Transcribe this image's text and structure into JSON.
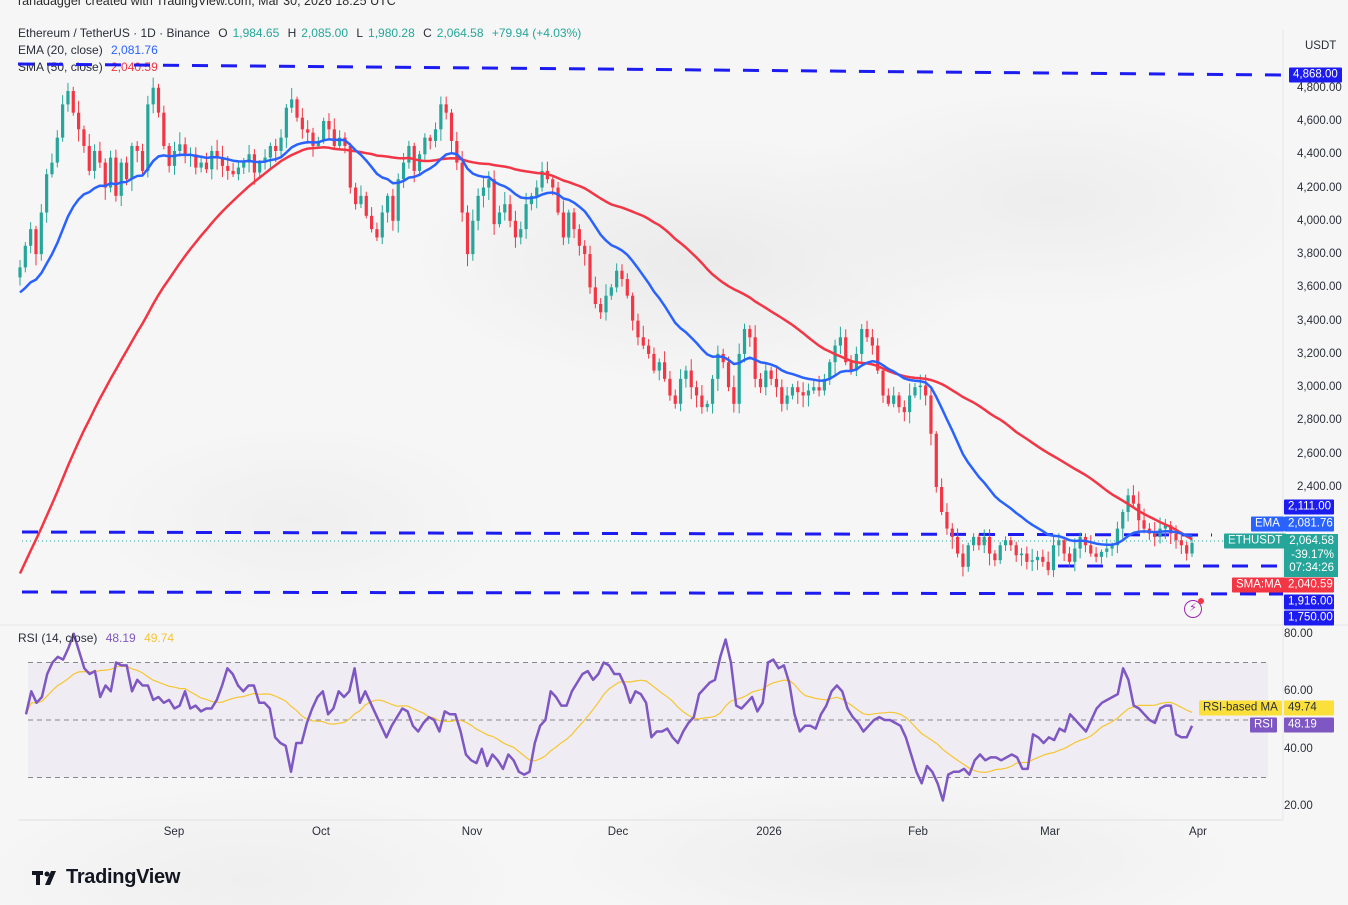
{
  "credit": "ranadagger created with TradingView.com, Mar 30, 2026 18:25 UTC",
  "symbol_legend": {
    "title": "Ethereum / TetherUS · 1D · Binance",
    "open_label": "O",
    "open": "1,984.65",
    "high_label": "H",
    "high": "2,085.00",
    "low_label": "L",
    "low": "1,980.28",
    "close_label": "C",
    "close": "2,064.58",
    "change": "+79.94 (+4.03%)"
  },
  "ema_legend": {
    "label": "EMA (20, close)",
    "value": "2,081.76"
  },
  "sma_legend": {
    "label": "SMA (50, close)",
    "value": "2,040.59"
  },
  "rsi_legend": {
    "label": "RSI (14, close)",
    "value": "48.19",
    "ma_value": "49.74"
  },
  "price_axis": {
    "unit": "USDT",
    "ticks": [
      "4,800.00",
      "4,600.00",
      "4,400.00",
      "4,200.00",
      "4,000.00",
      "3,800.00",
      "3,600.00",
      "3,400.00",
      "3,200.00",
      "3,000.00",
      "2,800.00",
      "2,600.00",
      "2,400.00"
    ]
  },
  "price_tags": {
    "resistance_top": "4,868.00",
    "resistance_mid": "2,111.00",
    "ema_label": "EMA",
    "ema_value": "2,081.76",
    "symbol_label": "ETHUSDT",
    "last_price": "2,064.58",
    "last_change": "-39.17%",
    "countdown": "07:34:26",
    "sma_label": "SMA:MA",
    "sma_value": "2,040.59",
    "support_1": "1,916.00",
    "support_2": "1,750.00"
  },
  "rsi_axis": {
    "ticks": [
      "80.00",
      "60.00",
      "40.00",
      "20.00"
    ]
  },
  "rsi_tags": {
    "ma_label": "RSI-based MA",
    "ma_value": "49.74",
    "rsi_label": "RSI",
    "rsi_value": "48.19"
  },
  "time_axis": [
    "Sep",
    "Oct",
    "Nov",
    "Dec",
    "2026",
    "Feb",
    "Mar",
    "Apr"
  ],
  "brand": "TradingView",
  "colors": {
    "up": "#26a69a",
    "down": "#f23645",
    "ema": "#2962ff",
    "sma": "#f23645",
    "levels": "#1d1cf0",
    "rsi": "#7e57c2",
    "rsi_ma": "#f7c531"
  },
  "chart_data": {
    "type": "candlestick",
    "title": "Ethereum / TetherUS · 1D · Binance",
    "xlabel": "",
    "ylabel": "USDT",
    "ylim": [
      1700,
      4900
    ],
    "x_ticks": [
      "Sep",
      "Oct",
      "Nov",
      "Dec",
      "2026",
      "Feb",
      "Mar",
      "Apr"
    ],
    "horizontal_levels": [
      4868,
      2111,
      1916,
      1750
    ],
    "closes": [
      3720,
      3850,
      3950,
      3800,
      4050,
      4280,
      4350,
      4500,
      4700,
      4780,
      4650,
      4550,
      4450,
      4300,
      4420,
      4350,
      4200,
      4380,
      4150,
      4350,
      4250,
      4450,
      4420,
      4300,
      4700,
      4800,
      4650,
      4450,
      4330,
      4420,
      4460,
      4390,
      4400,
      4320,
      4350,
      4310,
      4420,
      4380,
      4330,
      4300,
      4280,
      4320,
      4350,
      4400,
      4290,
      4350,
      4380,
      4450,
      4420,
      4500,
      4680,
      4730,
      4620,
      4550,
      4530,
      4450,
      4480,
      4600,
      4550,
      4450,
      4500,
      4450,
      4200,
      4100,
      4150,
      4030,
      3950,
      3900,
      4050,
      4150,
      4000,
      4250,
      4350,
      4450,
      4300,
      4400,
      4500,
      4480,
      4550,
      4700,
      4650,
      4480,
      4350,
      4050,
      3800,
      4000,
      4150,
      4200,
      4250,
      3980,
      4050,
      4100,
      4000,
      3900,
      3950,
      4100,
      4150,
      4200,
      4300,
      4250,
      4200,
      4050,
      3900,
      4050,
      3950,
      3850,
      3800,
      3600,
      3500,
      3450,
      3550,
      3600,
      3700,
      3650,
      3550,
      3400,
      3300,
      3250,
      3200,
      3100,
      3150,
      3050,
      2950,
      2900,
      3050,
      3100,
      3000,
      2950,
      2880,
      2900,
      3050,
      3200,
      3150,
      3000,
      2900,
      3200,
      3350,
      3300,
      3050,
      3000,
      3100,
      3050,
      3000,
      2900,
      2950,
      3000,
      2970,
      2950,
      2980,
      3000,
      2980,
      3050,
      3150,
      3250,
      3300,
      3150,
      3100,
      3200,
      3350,
      3300,
      3250,
      3100,
      2950,
      2900,
      2950,
      2880,
      2850,
      2950,
      3000,
      3010,
      2950,
      2720,
      2400,
      2250,
      2150,
      2100,
      2000,
      1920,
      2050,
      2100,
      2050,
      2100,
      2000,
      1960,
      2050,
      2080,
      2050,
      1990,
      2000,
      1950,
      1960,
      1980,
      1950,
      1900,
      2050,
      2080,
      2000,
      1950,
      2030,
      2100,
      2050,
      2000,
      1980,
      2010,
      2030,
      2050,
      2150,
      2250,
      2350,
      2300,
      2200,
      2150,
      2120,
      2100,
      2150,
      2170,
      2120,
      2080,
      2050,
      2000,
      2064
    ],
    "ema20_last": 2081.76,
    "sma50_last": 2040.59
  },
  "rsi_chart": {
    "ylim": [
      10,
      90
    ],
    "bands": [
      70,
      50,
      30
    ],
    "rsi": [
      52,
      60,
      56,
      58,
      66,
      70,
      72,
      71,
      75,
      80,
      74,
      68,
      66,
      67,
      58,
      62,
      60,
      70,
      69,
      69,
      60,
      64,
      62,
      62,
      57,
      58,
      56,
      57,
      54,
      55,
      60,
      54,
      55,
      53,
      54,
      54,
      57,
      62,
      68,
      66,
      62,
      60,
      62,
      62,
      56,
      56,
      54,
      44,
      42,
      41,
      32,
      42,
      42,
      49,
      54,
      58,
      60,
      52,
      54,
      60,
      58,
      60,
      68,
      56,
      60,
      56,
      52,
      48,
      44,
      48,
      51,
      54,
      53,
      48,
      46,
      49,
      51,
      50,
      46,
      53,
      52,
      52,
      46,
      38,
      36,
      35,
      40,
      34,
      38,
      36,
      33,
      38,
      36,
      32,
      31,
      32,
      42,
      48,
      50,
      60,
      58,
      55,
      55,
      60,
      63,
      66,
      67,
      64,
      66,
      70,
      69,
      66,
      66,
      62,
      56,
      60,
      59,
      56,
      44,
      46,
      46,
      47,
      44,
      42,
      46,
      49,
      51,
      59,
      61,
      63,
      64,
      72,
      78,
      70,
      55,
      54,
      56,
      58,
      53,
      56,
      70,
      71,
      68,
      69,
      63,
      52,
      46,
      48,
      48,
      47,
      52,
      55,
      60,
      62,
      60,
      54,
      51,
      49,
      46,
      48,
      50,
      51,
      50,
      50,
      49,
      48,
      44,
      38,
      32,
      28,
      34,
      32,
      28,
      22,
      31,
      32,
      32,
      33,
      31,
      36,
      38,
      36,
      37,
      37,
      36,
      37,
      38,
      37,
      33,
      33,
      45,
      44,
      42,
      44,
      43,
      47,
      46,
      52,
      50,
      48,
      46,
      50,
      54,
      56,
      57,
      58,
      59,
      68,
      64,
      55,
      54,
      52,
      50,
      49,
      54,
      55,
      55,
      45,
      44,
      44,
      48
    ]
  }
}
